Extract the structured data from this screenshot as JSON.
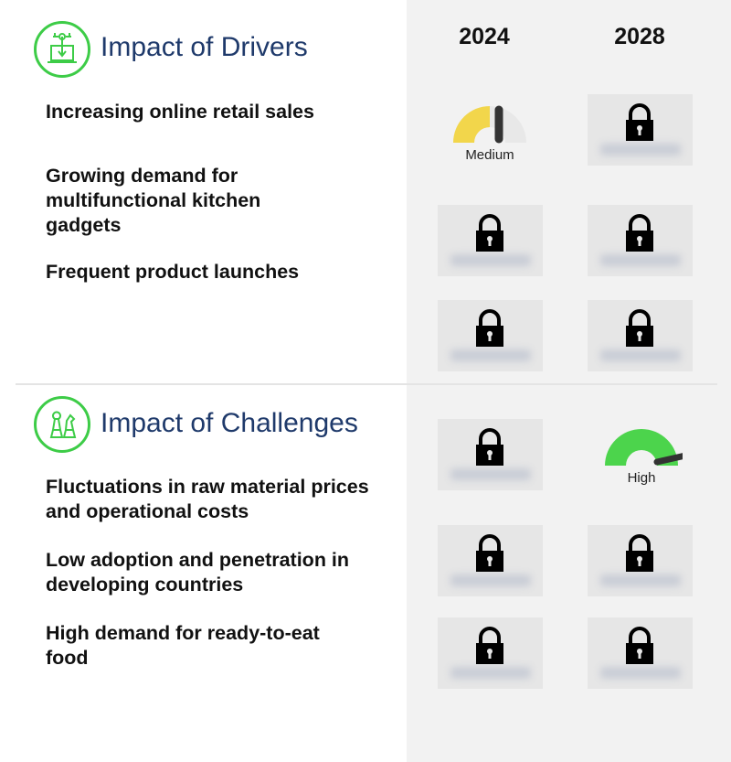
{
  "years": [
    "2024",
    "2028"
  ],
  "drivers": {
    "title": "Impact of Drivers",
    "icon": "laptop-download-icon",
    "items": [
      "Increasing online retail sales",
      "Growing demand for multifunctional kitchen gadgets",
      "Frequent product launches"
    ]
  },
  "challenges": {
    "title": "Impact of Challenges",
    "icon": "chess-pieces-icon",
    "items": [
      "Fluctuations in raw material prices and operational costs",
      "Low adoption and penetration in developing countries",
      "High demand for ready-to-eat food"
    ]
  },
  "gauges": {
    "driver1_2024": {
      "label": "Medium",
      "color": "#f2d64b"
    },
    "challenge1_2028": {
      "label": "High",
      "color": "#4cd44c"
    }
  },
  "colors": {
    "accent": "#3dcc47",
    "title": "#1f3a6b",
    "panel": "#f2f2f2"
  }
}
